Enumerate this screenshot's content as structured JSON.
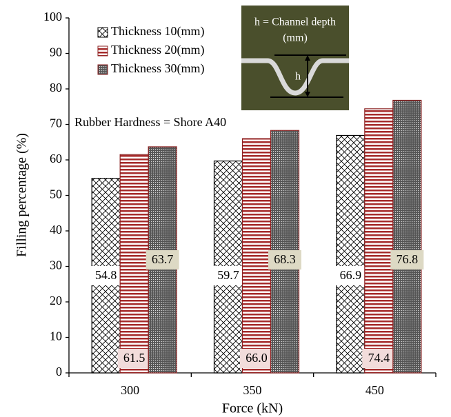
{
  "chart_data": {
    "type": "bar",
    "x_label": "Force (kN)",
    "y_label": "Filling percentage (%)",
    "categories": [
      "300",
      "350",
      "450"
    ],
    "series": [
      {
        "name": "Thickness 10(mm)",
        "color": "#000000",
        "values": [
          54.8,
          59.7,
          66.9
        ],
        "value_labels": [
          "54.8",
          "59.7",
          "66.9"
        ]
      },
      {
        "name": "Thickness 20(mm)",
        "color": "#a52a2a",
        "values": [
          61.5,
          66.0,
          74.4
        ],
        "value_labels": [
          "61.5",
          "66.0",
          "74.4"
        ]
      },
      {
        "name": "Thickness 30(mm)",
        "color": "#555555",
        "values": [
          63.7,
          68.3,
          76.8
        ],
        "value_labels": [
          "63.7",
          "68.3",
          "76.8"
        ]
      }
    ],
    "ylim": [
      0,
      100
    ],
    "yticks": [
      0,
      10,
      20,
      30,
      40,
      50,
      60,
      70,
      80,
      90,
      100
    ],
    "grid": false,
    "annotations": [
      "Rubber Hardness = Shore A40"
    ],
    "inset_labels": [
      "h = Channel depth",
      "(mm)",
      "h"
    ]
  }
}
